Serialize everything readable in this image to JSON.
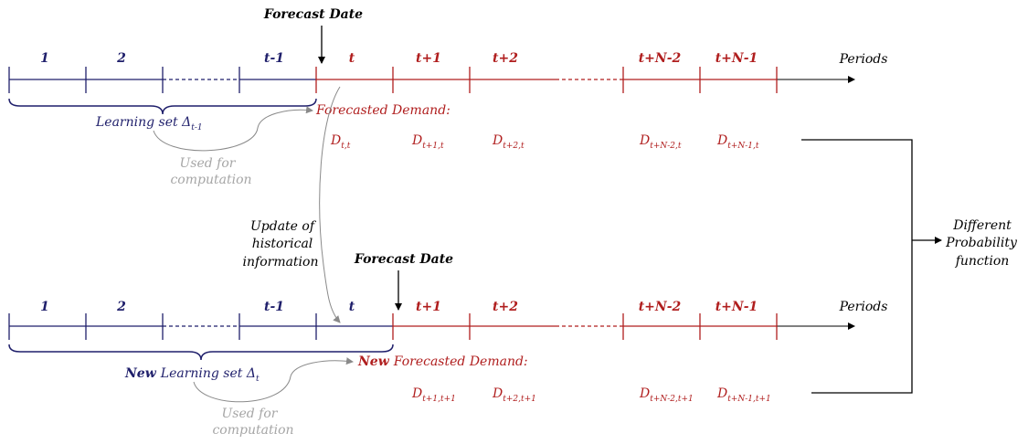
{
  "top": {
    "forecast_date": "Forecast Date",
    "periods_before": [
      "1",
      "2",
      "t-1"
    ],
    "periods_after": [
      "t",
      "t+1",
      "t+2",
      "t+N-2",
      "t+N-1"
    ],
    "axis_label": "Periods",
    "learning_set_main": "Learning set Δ",
    "learning_set_sub": "t-1",
    "used_for_1": "Used for",
    "used_for_2": "computation",
    "forecasted_demand": "Forecasted Demand:",
    "demands": [
      {
        "main": "D",
        "sub": "t,t"
      },
      {
        "main": "D",
        "sub": "t+1,t"
      },
      {
        "main": "D",
        "sub": "t+2,t"
      },
      {
        "main": "D",
        "sub": "t+N-2,t"
      },
      {
        "main": "D",
        "sub": "t+N-1,t"
      }
    ]
  },
  "middle": {
    "update_line1": "Update of",
    "update_line2": "historical",
    "update_line3": "information",
    "different_1": "Different",
    "different_2": "Probability",
    "different_3": "function"
  },
  "bottom": {
    "forecast_date": "Forecast Date",
    "periods_before": [
      "1",
      "2",
      "t-1",
      "t"
    ],
    "periods_after": [
      "t+1",
      "t+2",
      "t+N-2",
      "t+N-1"
    ],
    "axis_label": "Periods",
    "new_word": "New",
    "learning_set_main": "Learning set Δ",
    "learning_set_sub": "t",
    "used_for_1": "Used for",
    "used_for_2": "computation",
    "new_word_2": "New",
    "forecasted_demand": "Forecasted Demand:",
    "demands": [
      {
        "main": "D",
        "sub": "t+1,t+1"
      },
      {
        "main": "D",
        "sub": "t+2,t+1"
      },
      {
        "main": "D",
        "sub": "t+N-2,t+1"
      },
      {
        "main": "D",
        "sub": "t+N-1,t+1"
      }
    ]
  },
  "colors": {
    "blue": "#1f1f6b",
    "red": "#b01e1e",
    "gray": "#a6a6a6",
    "black": "#000000"
  }
}
